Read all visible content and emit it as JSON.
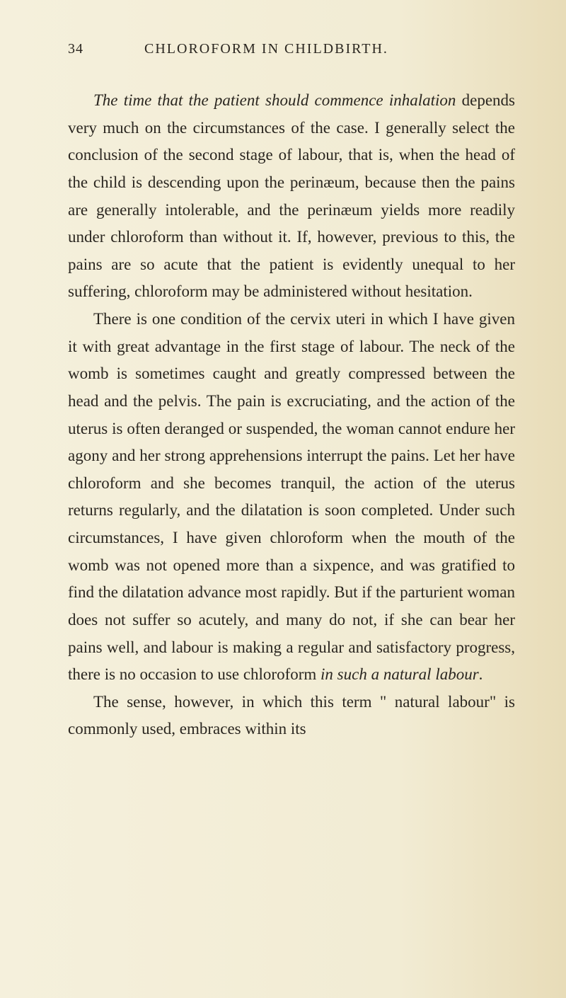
{
  "page": {
    "number": "34",
    "title": "CHLOROFORM IN CHILDBIRTH."
  },
  "paragraphs": {
    "p1_italic": "The time that the patient should commence inhalation",
    "p1_rest": " depends very much on the circumstances of the case. I generally select the conclusion of the second stage of labour, that is, when the head of the child is descending upon the perinæum, because then the pains are generally intolerable, and the perinæum yields more readily under chloroform than without it. If, however, previous to this, the pains are so acute that the patient is evidently unequal to her suffering, chloroform may be administered without hesitation.",
    "p2": "There is one condition of the cervix uteri in which I have given it with great advantage in the first stage of labour. The neck of the womb is sometimes caught and greatly compressed between the head and the pelvis. The pain is excruciating, and the action of the uterus is often deranged or suspended, the woman cannot endure her agony and her strong apprehensions interrupt the pains. Let her have chloroform and she becomes tranquil, the action of the uterus returns regularly, and the dilatation is soon completed. Under such circumstances, I have given chloroform when the mouth of the womb was not opened more than a sixpence, and was gratified to find the dilatation advance most rapidly. But if the parturient woman does not suffer so acutely, and many do not, if she can bear her pains well, and labour is making a regular and satisfactory progress, there is no occasion to use chloroform ",
    "p2_italic": "in such a natural labour",
    "p2_end": ".",
    "p3_start": "The sense, however, in which this term \" natural labour\" is commonly used, embraces within its"
  }
}
